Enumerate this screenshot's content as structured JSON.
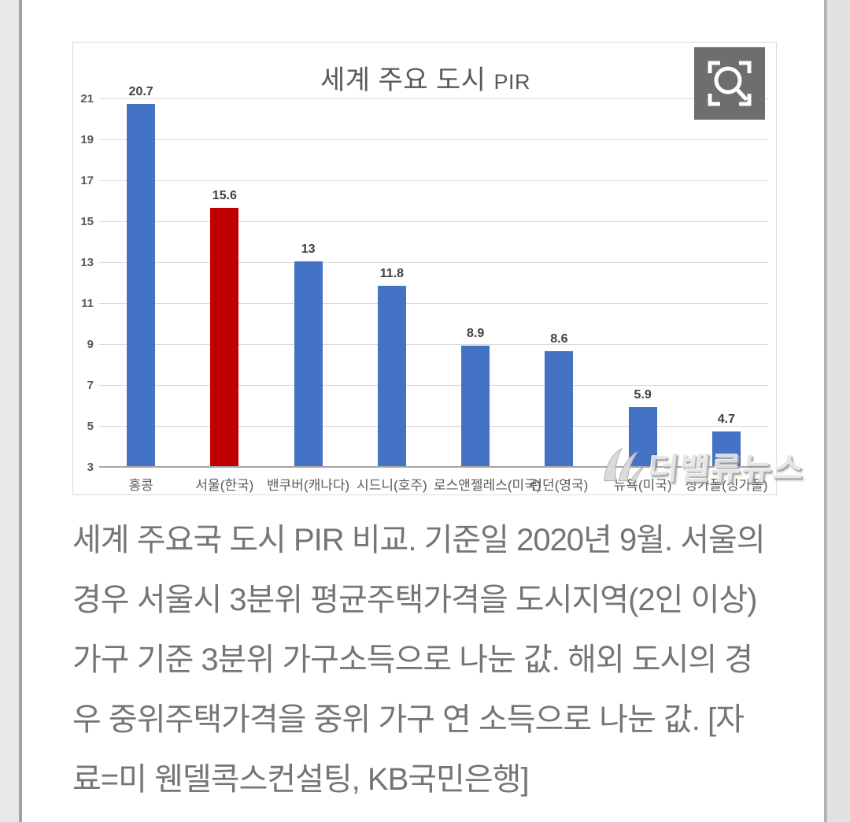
{
  "page": {
    "side_strip_color": "#e8e8e8",
    "side_line_color": "#a3a3a3",
    "background": "#ffffff"
  },
  "chart_data": {
    "type": "bar",
    "title": "세계 주요 도시 PIR",
    "title_main": "세계 주요 도시",
    "title_latin": "PIR",
    "categories": [
      "홍콩",
      "서울(한국)",
      "밴쿠버(캐나다)",
      "시드니(호주)",
      "로스앤젤레스(미국)",
      "런던(영국)",
      "뉴욕(미국)",
      "싱가폴(싱가폴)"
    ],
    "values": [
      20.7,
      15.6,
      13,
      11.8,
      8.9,
      8.6,
      5.9,
      4.7
    ],
    "value_labels": [
      "20.7",
      "15.6",
      "13",
      "11.8",
      "8.9",
      "8.6",
      "5.9",
      "4.7"
    ],
    "highlight_index": 1,
    "bar_color": "#4472C4",
    "highlight_color": "#C00000",
    "ylim": [
      3,
      21
    ],
    "y_ticks": [
      3,
      5,
      7,
      9,
      11,
      13,
      15,
      17,
      19,
      21
    ],
    "grid": true,
    "gridline_color": "#d9d9d9",
    "axis_line_color": "#a6a6a6",
    "tick_label_color": "#595959",
    "value_label_color": "#404040",
    "legend": "none",
    "xlabel": "",
    "ylabel": ""
  },
  "zoom_button": {
    "icon": "zoom-expand-icon",
    "background": "#6e6e6e"
  },
  "watermark": {
    "text": "더밸류뉴스",
    "icon": "valuenews-wing-logo"
  },
  "caption": {
    "lines": [
      "세계 주요국 도시 PIR 비교. 기준일 2020년 9월. 서울의",
      "경우 서울시 3분위 평균주택가격을 도시지역(2인 이상)",
      "가구 기준 3분위 가구소득으로 나눈 값. 해외 도시의 경",
      "우  중위주택가격을 중위 가구 연 소득으로 나눈 값. [자",
      "료=미 웬델콕스컨설팅, KB국민은행]"
    ]
  }
}
